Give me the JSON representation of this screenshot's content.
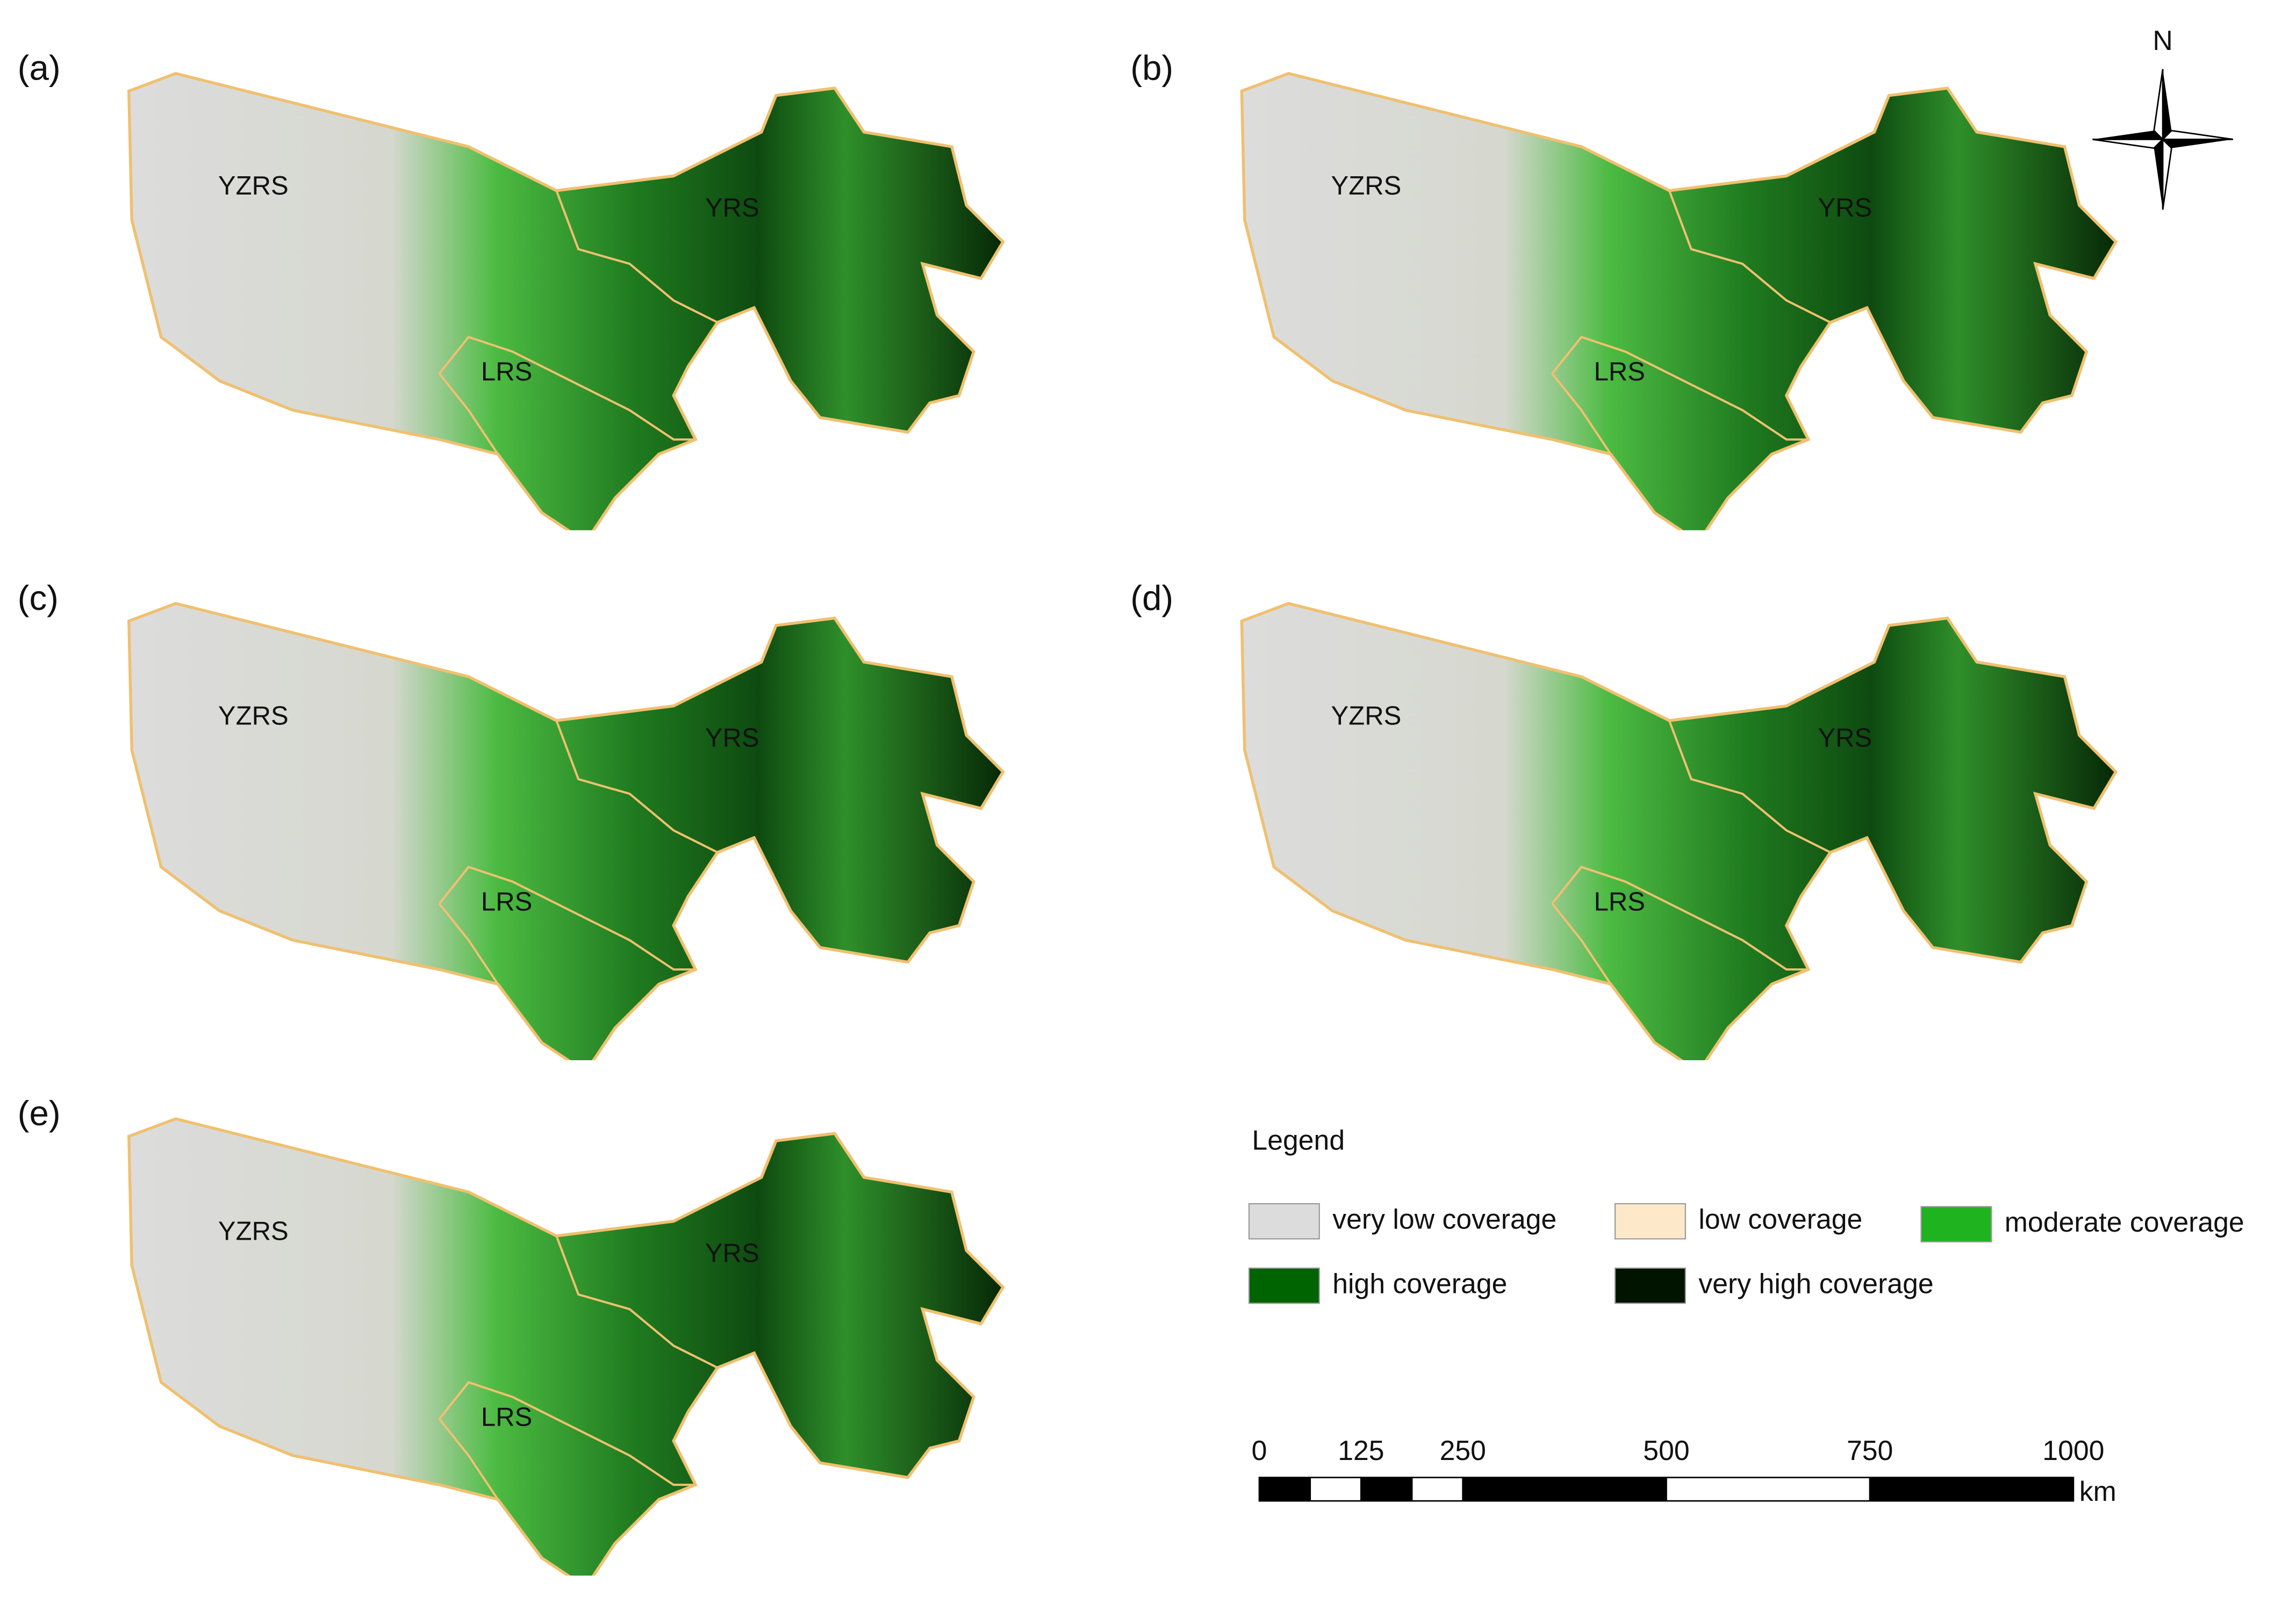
{
  "panels": [
    {
      "label": "(a)",
      "regions": [
        "YZRS",
        "YRS",
        "LRS"
      ]
    },
    {
      "label": "(b)",
      "regions": [
        "YZRS",
        "YRS",
        "LRS"
      ]
    },
    {
      "label": "(c)",
      "regions": [
        "YZRS",
        "YRS",
        "LRS"
      ]
    },
    {
      "label": "(d)",
      "regions": [
        "YZRS",
        "YRS",
        "LRS"
      ]
    },
    {
      "label": "(e)",
      "regions": [
        "YZRS",
        "YRS",
        "LRS"
      ]
    }
  ],
  "north_arrow": "N",
  "legend": {
    "title": "Legend",
    "items": [
      {
        "label": "very low coverage",
        "color": "#dcdcdc"
      },
      {
        "label": "low coverage",
        "color": "#fde9c9"
      },
      {
        "label": "moderate coverage",
        "color": "#1fb41f"
      },
      {
        "label": "high coverage",
        "color": "#006400"
      },
      {
        "label": "very high coverage",
        "color": "#001400"
      }
    ]
  },
  "scale_bar": {
    "ticks": [
      0,
      125,
      250,
      500,
      750,
      1000
    ],
    "unit": "km"
  }
}
